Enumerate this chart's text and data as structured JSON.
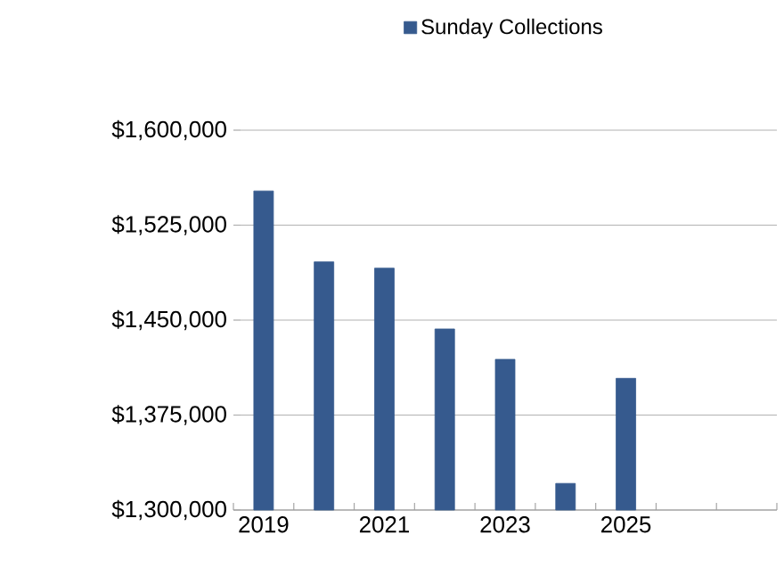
{
  "chart_data": {
    "type": "bar",
    "categories": [
      "2019",
      null,
      "2021",
      null,
      "2023",
      null,
      "2025",
      null,
      null
    ],
    "series": [
      {
        "name": "Sunday Collections",
        "color": "#365a8e",
        "values": [
          1552000,
          1496000,
          1491000,
          1443000,
          1419000,
          1321000,
          1404000,
          null,
          null
        ]
      }
    ],
    "ylim": [
      1300000,
      1600000
    ],
    "yticks": [
      {
        "value": 1300000,
        "label": "$1,300,000"
      },
      {
        "value": 1375000,
        "label": "$1,375,000"
      },
      {
        "value": 1450000,
        "label": "$1,450,000"
      },
      {
        "value": 1525000,
        "label": "$1,525,000"
      },
      {
        "value": 1600000,
        "label": "$1,600,000"
      }
    ],
    "grid": "y",
    "legend": "top"
  }
}
